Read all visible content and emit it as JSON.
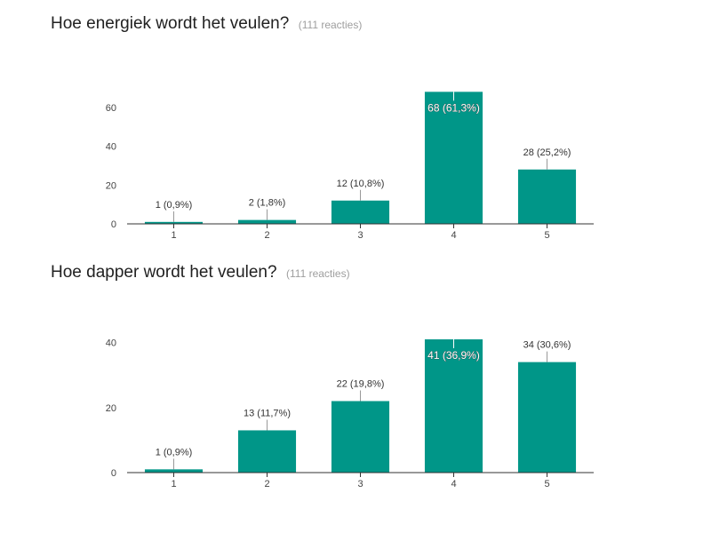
{
  "chart_data": [
    {
      "type": "bar",
      "title": "Hoe energiek wordt het veulen?",
      "subtitle": "(111 reacties)",
      "categories": [
        "1",
        "2",
        "3",
        "4",
        "5"
      ],
      "values": [
        1,
        2,
        12,
        68,
        28
      ],
      "data_labels": [
        "1 (0,9%)",
        "2 (1,8%)",
        "12 (10,8%)",
        "68 (61,3%)",
        "28 (25,2%)"
      ],
      "y_ticks": [
        "0",
        "20",
        "40",
        "60"
      ],
      "ylim": [
        0,
        70
      ],
      "grid": false,
      "legend": "none",
      "bar_color": "#009688"
    },
    {
      "type": "bar",
      "title": "Hoe dapper wordt het veulen?",
      "subtitle": "(111 reacties)",
      "categories": [
        "1",
        "2",
        "3",
        "4",
        "5"
      ],
      "values": [
        1,
        13,
        22,
        41,
        34
      ],
      "data_labels": [
        "1 (0,9%)",
        "13 (11,7%)",
        "22 (19,8%)",
        "41 (36,9%)",
        "34 (30,6%)"
      ],
      "y_ticks": [
        "0",
        "20",
        "40"
      ],
      "ylim": [
        0,
        41
      ],
      "grid": false,
      "legend": "none",
      "bar_color": "#009688"
    }
  ]
}
